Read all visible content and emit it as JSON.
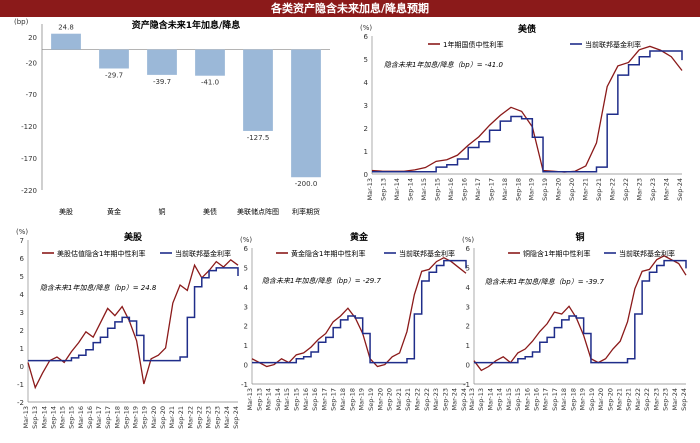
{
  "page_title": "各类资产隐含未来加息/降息预期",
  "chart_data": [
    {
      "id": "bar",
      "type": "bar",
      "title": "资产隐含未来1年加息/降息",
      "unit_label": "(bp)",
      "categories": [
        "美股",
        "黄金",
        "铜",
        "美债",
        "美联储点阵图",
        "利率期货"
      ],
      "values": [
        24.8,
        -29.7,
        -39.7,
        -41.0,
        -127.5,
        -200.0
      ],
      "value_labels": [
        "24.8",
        "-29.7",
        "-39.7",
        "-41.0",
        "-127.5",
        "-200.0"
      ],
      "ylim": [
        -220,
        40
      ],
      "yticks": [
        20,
        -20,
        -70,
        -120,
        -170,
        -220
      ],
      "ytick_labels": [
        "20",
        "-20",
        "-70",
        "-120",
        "-170",
        "-220"
      ],
      "color": "#9bb8d8"
    },
    {
      "id": "bonds",
      "type": "line",
      "title": "美债",
      "unit_label": "(%)",
      "legend": [
        "1年期国债中性利率",
        "当前联邦基金利率"
      ],
      "annotation": "隐含未来1年加息/降息（bp）= -41.0",
      "ylim": [
        0,
        6
      ],
      "yticks": [
        0,
        1,
        2,
        3,
        4,
        5,
        6
      ],
      "ytick_labels": [
        "0",
        "1",
        "2",
        "3",
        "4",
        "5",
        "6"
      ],
      "x_labels": [
        "Mar-13",
        "Sep-13",
        "Mar-14",
        "Sep-14",
        "Mar-15",
        "Sep-15",
        "Mar-16",
        "Sep-16",
        "Mar-17",
        "Sep-17",
        "Mar-18",
        "Sep-18",
        "Mar-19",
        "Sep-19",
        "Mar-20",
        "Sep-20",
        "Mar-21",
        "Sep-21",
        "Mar-22",
        "Sep-22",
        "Mar-23",
        "Sep-23",
        "Mar-24",
        "Sep-24"
      ],
      "series": [
        {
          "name": "1年期国债中性利率",
          "color": "#8b1a1a",
          "values": [
            0.15,
            0.12,
            0.12,
            0.12,
            0.18,
            0.28,
            0.55,
            0.62,
            0.82,
            1.25,
            1.62,
            2.12,
            2.55,
            2.9,
            2.72,
            2.05,
            0.15,
            0.12,
            0.08,
            0.12,
            0.35,
            1.35,
            3.8,
            4.7,
            4.85,
            5.4,
            5.55,
            5.38,
            5.1,
            4.5
          ]
        },
        {
          "name": "当前联邦基金利率",
          "color": "#1f2d8a",
          "values": [
            0.1,
            0.1,
            0.1,
            0.1,
            0.1,
            0.1,
            0.3,
            0.4,
            0.65,
            1.15,
            1.4,
            1.9,
            2.3,
            2.5,
            2.4,
            1.6,
            0.1,
            0.1,
            0.1,
            0.1,
            0.1,
            0.3,
            2.6,
            4.3,
            4.75,
            5.1,
            5.35,
            5.35,
            5.35,
            4.95
          ]
        }
      ]
    },
    {
      "id": "equity",
      "type": "line",
      "title": "美股",
      "unit_label": "(%)",
      "legend": [
        "美股估值隐含1年期中性利率",
        "当前联邦基金利率"
      ],
      "annotation": "隐含未来1年加息/降息（bp）= 24.8",
      "ylim": [
        -2,
        7
      ],
      "yticks": [
        -2,
        -1,
        0,
        1,
        2,
        3,
        4,
        5,
        6,
        7
      ],
      "ytick_labels": [
        "-2",
        "-1",
        "0",
        "1",
        "2",
        "3",
        "4",
        "5",
        "6",
        "7"
      ],
      "x_labels": [
        "Mar-13",
        "Sep-13",
        "Mar-14",
        "Sep-14",
        "Mar-15",
        "Sep-15",
        "Mar-16",
        "Sep-16",
        "Mar-17",
        "Sep-17",
        "Mar-18",
        "Sep-18",
        "Mar-19",
        "Sep-19",
        "Mar-20",
        "Sep-20",
        "Mar-21",
        "Sep-21",
        "Mar-22",
        "Sep-22",
        "Mar-23",
        "Sep-23",
        "Mar-24",
        "Sep-24"
      ],
      "series": [
        {
          "name": "美股估值隐含1年期中性利率",
          "color": "#8b1a1a",
          "values": [
            0.2,
            -1.2,
            -0.4,
            0.3,
            0.5,
            0.2,
            0.8,
            1.3,
            1.9,
            1.6,
            2.4,
            3.2,
            2.8,
            3.3,
            2.5,
            1.4,
            -1.0,
            0.4,
            0.6,
            1.0,
            3.5,
            4.5,
            4.2,
            5.6,
            4.9,
            5.3,
            5.8,
            5.5,
            5.9,
            5.6
          ]
        },
        {
          "name": "当前联邦基金利率",
          "color": "#1f2d8a",
          "values": [
            0.3,
            0.3,
            0.3,
            0.3,
            0.3,
            0.3,
            0.45,
            0.6,
            0.9,
            1.3,
            1.6,
            2.1,
            2.45,
            2.7,
            2.5,
            1.7,
            0.3,
            0.3,
            0.3,
            0.3,
            0.3,
            0.5,
            2.7,
            4.4,
            4.9,
            5.3,
            5.45,
            5.45,
            5.45,
            5.0
          ]
        }
      ]
    },
    {
      "id": "gold",
      "type": "line",
      "title": "黄金",
      "unit_label": "(%)",
      "legend": [
        "黄金隐含1年期中性利率",
        "当前联邦基金利率"
      ],
      "annotation": "隐含未来1年加息/降息（bp）= -29.7",
      "ylim": [
        -1,
        6
      ],
      "yticks": [
        -1,
        0,
        1,
        2,
        3,
        4,
        5,
        6
      ],
      "ytick_labels": [
        "-1",
        "0",
        "1",
        "2",
        "3",
        "4",
        "5",
        "6"
      ],
      "x_labels": [
        "Mar-13",
        "Sep-13",
        "Mar-14",
        "Sep-14",
        "Mar-15",
        "Sep-15",
        "Mar-16",
        "Sep-16",
        "Mar-17",
        "Sep-17",
        "Mar-18",
        "Sep-18",
        "Mar-19",
        "Sep-19",
        "Mar-20",
        "Sep-20",
        "Mar-21",
        "Sep-21",
        "Mar-22",
        "Sep-22",
        "Mar-23",
        "Sep-23",
        "Mar-24",
        "Sep-24"
      ],
      "series": [
        {
          "name": "黄金隐含1年期中性利率",
          "color": "#8b1a1a",
          "values": [
            0.3,
            0.1,
            -0.1,
            0.0,
            0.3,
            0.1,
            0.5,
            0.6,
            0.9,
            1.3,
            1.6,
            2.2,
            2.5,
            2.9,
            2.4,
            1.6,
            0.3,
            -0.1,
            0.0,
            0.4,
            0.6,
            1.7,
            3.6,
            4.8,
            4.9,
            5.3,
            5.5,
            5.3,
            5.0,
            4.7
          ]
        },
        {
          "name": "当前联邦基金利率",
          "color": "#1f2d8a",
          "values": [
            0.1,
            0.1,
            0.1,
            0.1,
            0.1,
            0.1,
            0.3,
            0.4,
            0.65,
            1.15,
            1.4,
            1.9,
            2.3,
            2.5,
            2.4,
            1.6,
            0.1,
            0.1,
            0.1,
            0.1,
            0.1,
            0.3,
            2.6,
            4.3,
            4.75,
            5.1,
            5.35,
            5.35,
            5.35,
            4.95
          ]
        }
      ]
    },
    {
      "id": "copper",
      "type": "line",
      "title": "铜",
      "unit_label": "(%)",
      "legend": [
        "铜隐含1年期中性利率",
        "当前联邦基金利率"
      ],
      "annotation": "隐含未来1年加息/降息（bp）= -39.7",
      "ylim": [
        -1,
        6
      ],
      "yticks": [
        -1,
        0,
        1,
        2,
        3,
        4,
        5,
        6
      ],
      "ytick_labels": [
        "-1",
        "0",
        "1",
        "2",
        "3",
        "4",
        "5",
        "6"
      ],
      "x_labels": [
        "Mar-13",
        "Sep-13",
        "Mar-14",
        "Sep-14",
        "Mar-15",
        "Sep-15",
        "Mar-16",
        "Sep-16",
        "Mar-17",
        "Sep-17",
        "Mar-18",
        "Sep-18",
        "Mar-19",
        "Sep-19",
        "Mar-20",
        "Sep-20",
        "Mar-21",
        "Sep-21",
        "Mar-22",
        "Sep-22",
        "Mar-23",
        "Sep-23",
        "Mar-24",
        "Sep-24"
      ],
      "series": [
        {
          "name": "铜隐含1年期中性利率",
          "color": "#8b1a1a",
          "values": [
            0.2,
            -0.3,
            -0.1,
            0.2,
            0.4,
            0.1,
            0.6,
            0.8,
            1.2,
            1.7,
            2.1,
            2.7,
            2.6,
            3.0,
            2.4,
            1.5,
            0.3,
            0.1,
            0.3,
            0.8,
            1.2,
            2.2,
            3.9,
            4.8,
            4.9,
            5.4,
            5.6,
            5.4,
            5.2,
            4.6
          ]
        },
        {
          "name": "当前联邦基金利率",
          "color": "#1f2d8a",
          "values": [
            0.1,
            0.1,
            0.1,
            0.1,
            0.1,
            0.1,
            0.3,
            0.4,
            0.65,
            1.15,
            1.4,
            1.9,
            2.3,
            2.5,
            2.4,
            1.6,
            0.1,
            0.1,
            0.1,
            0.1,
            0.1,
            0.3,
            2.6,
            4.3,
            4.75,
            5.1,
            5.35,
            5.35,
            5.35,
            4.95
          ]
        }
      ]
    }
  ]
}
